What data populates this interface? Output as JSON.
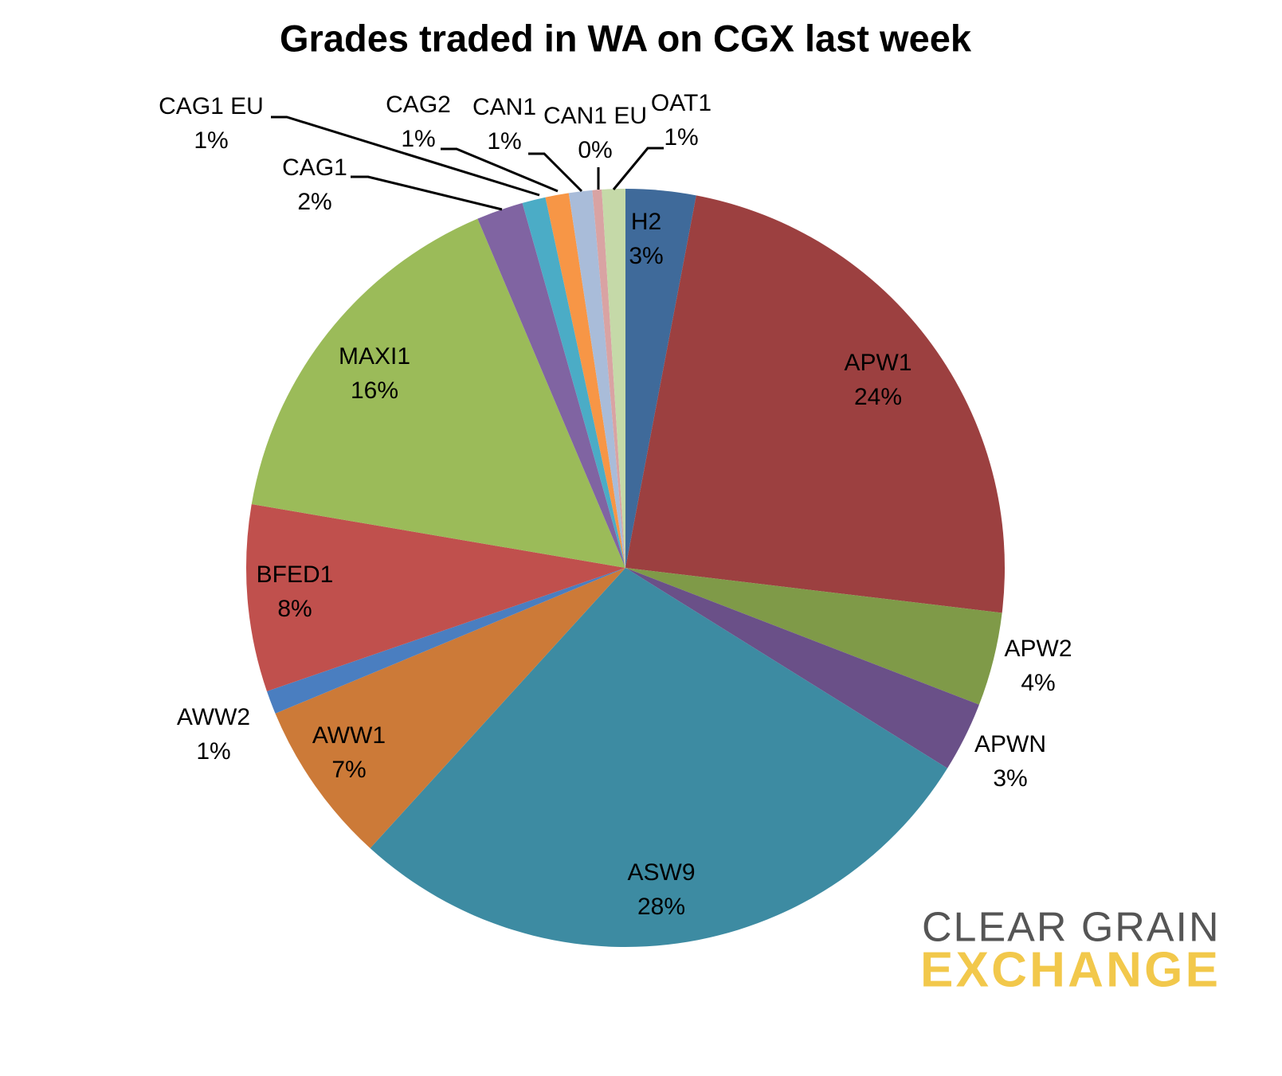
{
  "chart_data": {
    "type": "pie",
    "title": "Grades traded in WA on CGX last week",
    "categories": [
      "H2",
      "APW1",
      "APW2",
      "APWN",
      "ASW9",
      "AWW1",
      "AWW2",
      "BFED1",
      "MAXI1",
      "CAG1",
      "CAG1 EU",
      "CAG2",
      "CAN1",
      "CAN1 EU",
      "OAT1"
    ],
    "values": [
      3,
      24,
      4,
      3,
      28,
      7,
      1,
      8,
      16,
      2,
      1,
      1,
      1,
      0.4,
      1
    ],
    "value_labels": [
      "3%",
      "24%",
      "4%",
      "3%",
      "28%",
      "7%",
      "1%",
      "8%",
      "16%",
      "2%",
      "1%",
      "1%",
      "1%",
      "0%",
      "1%"
    ],
    "colors": [
      "#3f6a9a",
      "#9c4040",
      "#7f9a48",
      "#6a5088",
      "#3d8ba2",
      "#cc7a38",
      "#4a7ec0",
      "#c0504d",
      "#9bbb59",
      "#8064a2",
      "#4bacc6",
      "#f79646",
      "#a9bcd9",
      "#d9a3a3",
      "#c5d9a8"
    ]
  },
  "logo": {
    "line1": "CLEAR GRAIN",
    "line2": "EXCHANGE"
  }
}
